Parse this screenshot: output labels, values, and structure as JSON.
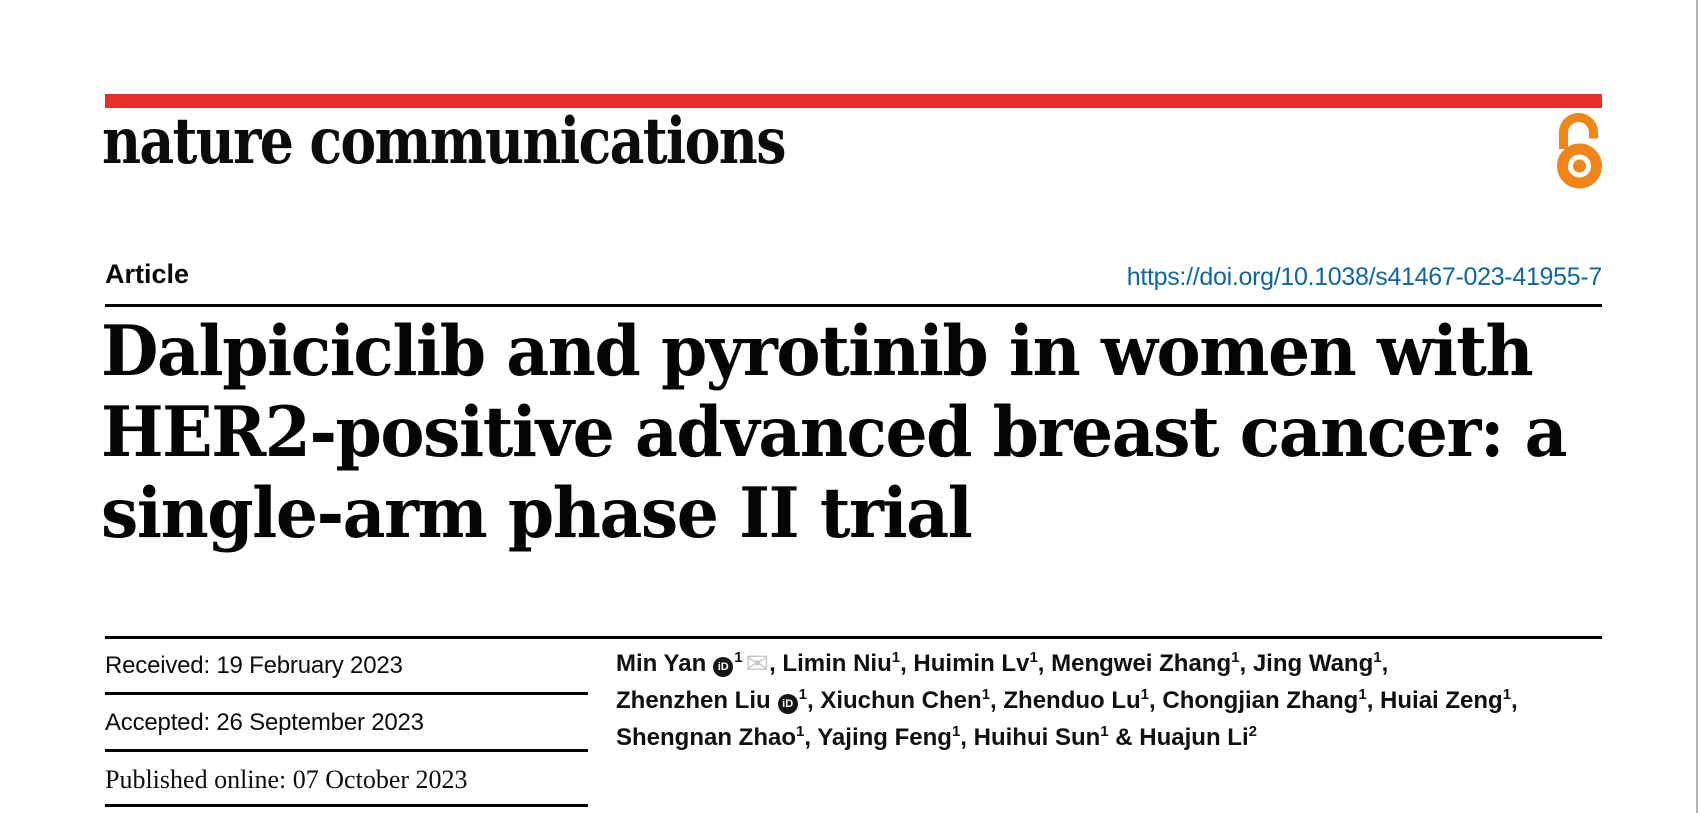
{
  "colors": {
    "brand_red": "#e5302a",
    "open_access_orange": "#f08518",
    "link_blue": "#0e66a6",
    "ink": "#0a0a0a",
    "envelope_gray": "#c8c8c8",
    "page_edge_gray": "#b3b3b3"
  },
  "masthead": {
    "journal": "nature communications",
    "open_access_icon": "open-lock"
  },
  "header": {
    "article_label": "Article",
    "doi": "https://doi.org/10.1038/s41467-023-41955-7"
  },
  "title_lines": [
    "Dalpiciclib and pyrotinib in women with",
    "HER2-positive advanced breast cancer: a",
    "single-arm phase II trial"
  ],
  "dates": {
    "received": "Received: 19 February 2023",
    "accepted": "Accepted: 26 September 2023",
    "published": "Published online: 07 October 2023"
  },
  "icons": {
    "orcid_label": "iD",
    "email_glyph": "✉"
  },
  "authors": {
    "lines": [
      [
        {
          "name": "Min Yan",
          "orcid": true,
          "sup": "1",
          "email": true,
          "tail": ", "
        },
        {
          "name": "Limin Niu",
          "sup": "1",
          "tail": ", "
        },
        {
          "name": "Huimin Lv",
          "sup": "1",
          "tail": ", "
        },
        {
          "name": "Mengwei Zhang",
          "sup": "1",
          "tail": ", "
        },
        {
          "name": "Jing Wang",
          "sup": "1",
          "tail": ","
        }
      ],
      [
        {
          "name": "Zhenzhen Liu",
          "orcid": true,
          "sup": "1",
          "tail": ", "
        },
        {
          "name": "Xiuchun Chen",
          "sup": "1",
          "tail": ", "
        },
        {
          "name": "Zhenduo Lu",
          "sup": "1",
          "tail": ", "
        },
        {
          "name": "Chongjian Zhang",
          "sup": "1",
          "tail": ", "
        },
        {
          "name": "Huiai Zeng",
          "sup": "1",
          "tail": ","
        }
      ],
      [
        {
          "name": "Shengnan Zhao",
          "sup": "1",
          "tail": ", "
        },
        {
          "name": "Yajing Feng",
          "sup": "1",
          "tail": ", "
        },
        {
          "name": "Huihui Sun",
          "sup": "1",
          "tail": " & "
        },
        {
          "name": "Huajun Li",
          "sup": "2",
          "tail": ""
        }
      ]
    ]
  }
}
